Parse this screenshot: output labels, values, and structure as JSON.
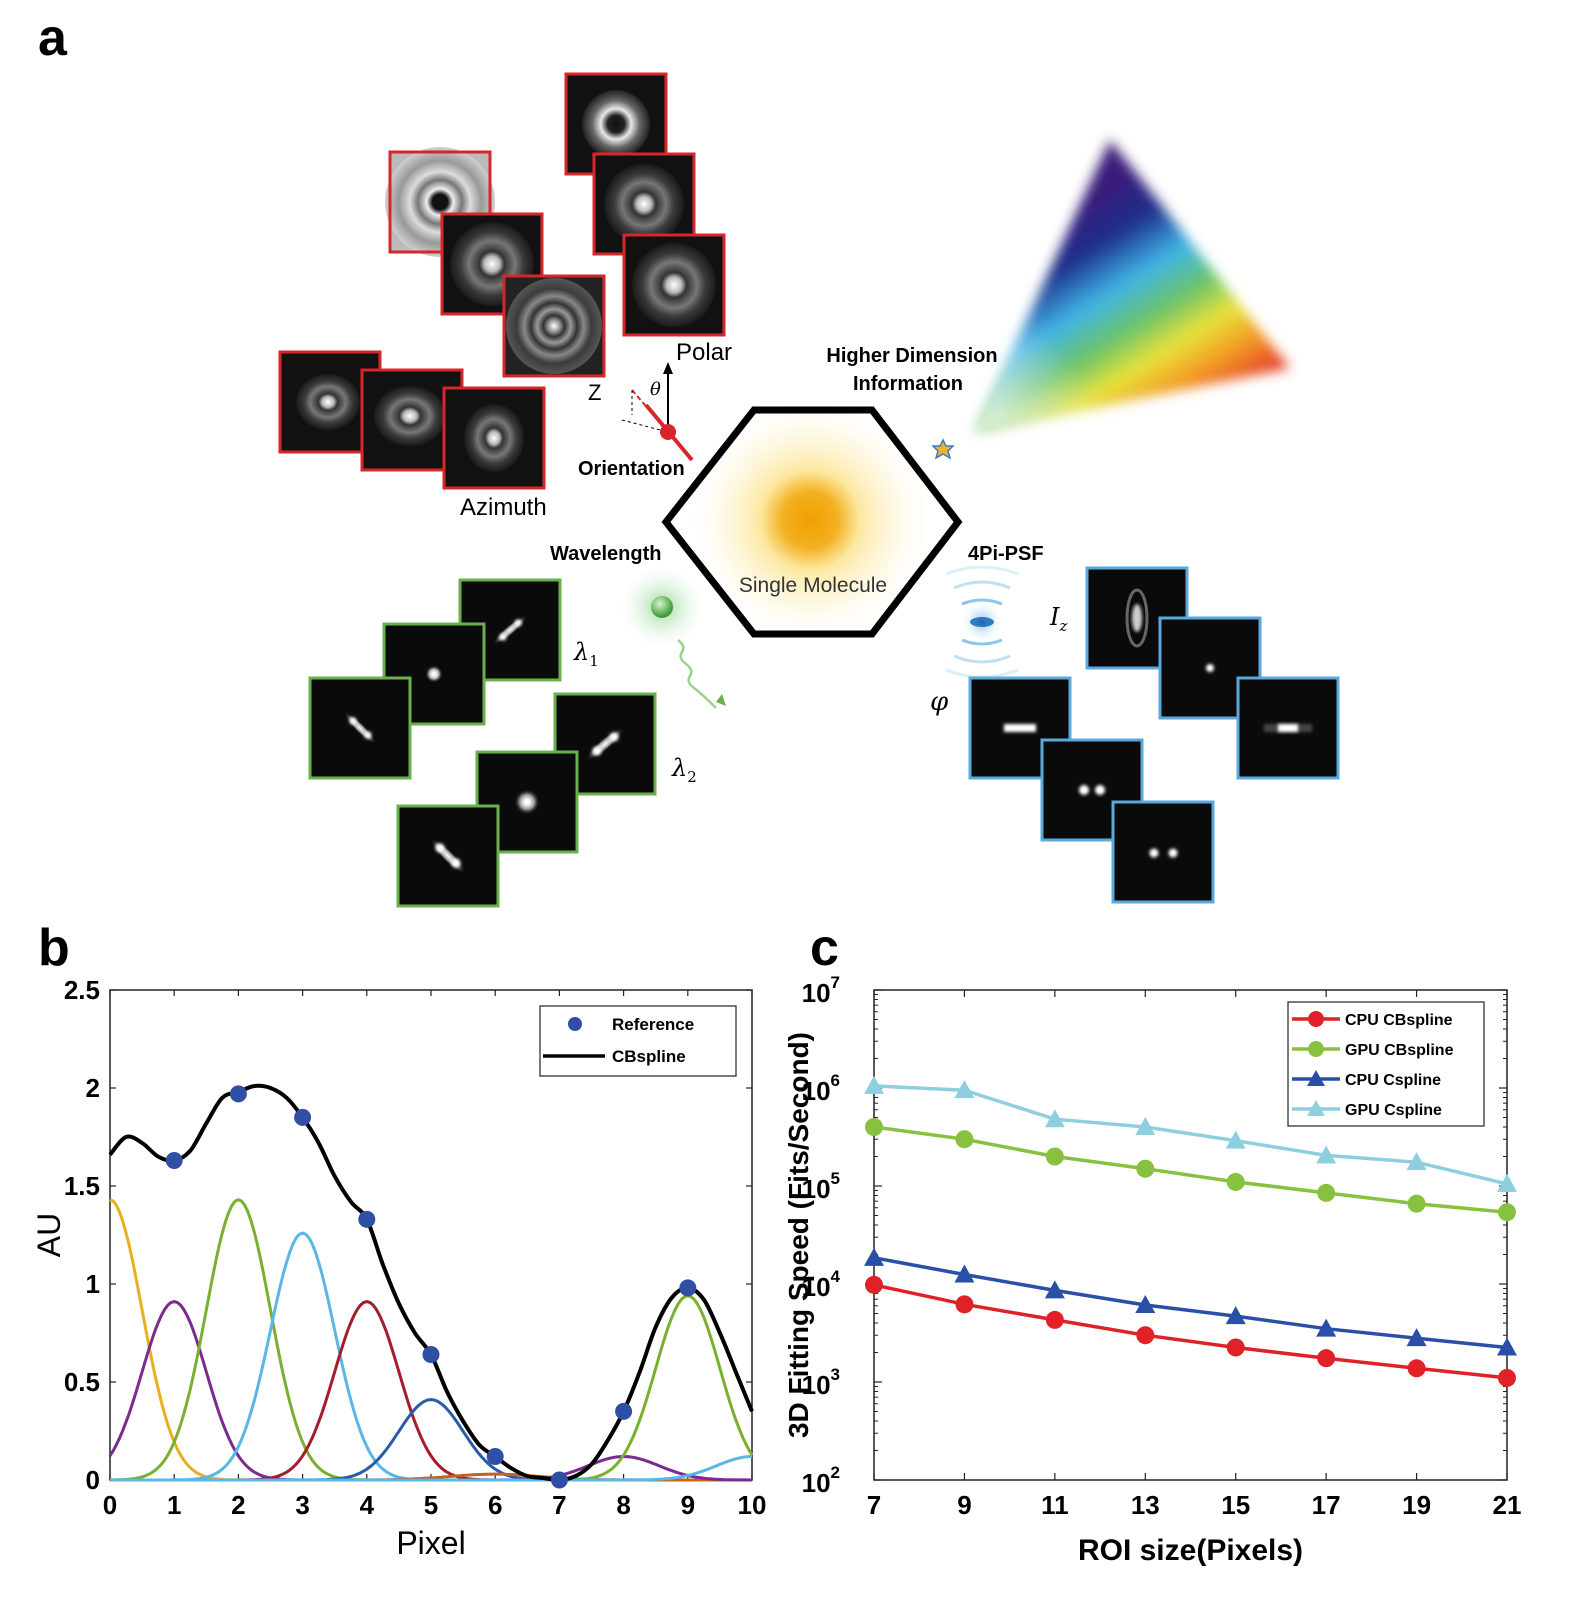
{
  "panel_labels": {
    "a": "a",
    "b": "b",
    "c": "c"
  },
  "panel_a": {
    "labels": {
      "polar": "Polar",
      "azimuth": "Azimuth",
      "z": "Z",
      "theta": "θ",
      "orientation": "Orientation",
      "higher_dimension_line1": "Higher Dimension",
      "higher_dimension_line2": "Information",
      "wavelength": "Wavelength",
      "single_molecule": "Single Molecule",
      "four_pi_psf": "4Pi-PSF",
      "lambda1": "λ",
      "lambda1_sub": "1",
      "lambda2": "λ",
      "lambda2_sub": "2",
      "iz": "I",
      "iz_sub": "z",
      "phi": "φ"
    },
    "frame_colors": {
      "orientation": "#d7262b",
      "wavelength": "#6ab04c",
      "four_pi": "#5aa9dc"
    }
  },
  "chart_data": [
    {
      "type": "line",
      "panel": "b",
      "xlabel": "Pixel",
      "ylabel": "AU",
      "xlim": [
        0,
        10
      ],
      "ylim": [
        0,
        2.5
      ],
      "xticks": [
        "0",
        "1",
        "2",
        "3",
        "4",
        "5",
        "6",
        "7",
        "8",
        "9",
        "10"
      ],
      "yticks": [
        "0",
        "0.5",
        "1",
        "1.5",
        "2",
        "2.5"
      ],
      "legend_position": "top-right",
      "legend": [
        "Reference",
        "CBspline"
      ],
      "reference_points": {
        "name": "Reference",
        "color": "#2e4fa3",
        "x": [
          1,
          2,
          3,
          4,
          5,
          6,
          7,
          8,
          9
        ],
        "y": [
          1.63,
          1.97,
          1.85,
          1.33,
          0.64,
          0.12,
          0.0,
          0.35,
          0.98
        ]
      },
      "fit_curve": {
        "name": "CBspline",
        "color": "#000000",
        "x": [
          0,
          0.25,
          0.5,
          0.75,
          1,
          1.25,
          1.5,
          1.75,
          2,
          2.25,
          2.5,
          2.75,
          3,
          3.25,
          3.5,
          3.75,
          4,
          4.25,
          4.5,
          4.75,
          5,
          5.25,
          5.5,
          5.75,
          6,
          6.25,
          6.5,
          6.75,
          7,
          7.25,
          7.5,
          7.75,
          8,
          8.25,
          8.5,
          8.75,
          9,
          9.25,
          9.5,
          9.75,
          10
        ],
        "y": [
          1.66,
          1.75,
          1.72,
          1.65,
          1.63,
          1.68,
          1.82,
          1.95,
          1.98,
          2.01,
          2.0,
          1.95,
          1.85,
          1.72,
          1.55,
          1.42,
          1.33,
          1.1,
          0.9,
          0.75,
          0.64,
          0.45,
          0.3,
          0.18,
          0.12,
          0.06,
          0.02,
          0.01,
          0.0,
          0.02,
          0.08,
          0.2,
          0.35,
          0.55,
          0.78,
          0.93,
          0.98,
          0.92,
          0.75,
          0.55,
          0.35
        ]
      },
      "basis_functions": [
        {
          "color": "#e8b020",
          "center": 0,
          "amp": 1.43,
          "sigma": 0.5
        },
        {
          "color": "#7b2b8e",
          "center": 1,
          "amp": 0.91,
          "sigma": 0.5
        },
        {
          "color": "#79b030",
          "center": 2,
          "amp": 1.43,
          "sigma": 0.5
        },
        {
          "color": "#5ab6e6",
          "center": 3,
          "amp": 1.26,
          "sigma": 0.5
        },
        {
          "color": "#a31d2c",
          "center": 4,
          "amp": 0.91,
          "sigma": 0.5
        },
        {
          "color": "#2a5ba8",
          "center": 5,
          "amp": 0.41,
          "sigma": 0.5
        },
        {
          "color": "#c86020",
          "center": 6,
          "amp": 0.03,
          "sigma": 0.7
        },
        {
          "color": "#7b2b8e",
          "center": 8,
          "amp": 0.12,
          "sigma": 0.55
        },
        {
          "color": "#79b030",
          "center": 9,
          "amp": 0.94,
          "sigma": 0.5
        },
        {
          "color": "#5ab6e6",
          "center": 10,
          "amp": 0.12,
          "sigma": 0.55
        }
      ]
    },
    {
      "type": "line",
      "panel": "c",
      "xlabel": "ROI size(Pixels)",
      "ylabel": "3D Fitting Speed (Fits/Second)",
      "y_scale": "log",
      "xlim": [
        7,
        21
      ],
      "ylim": [
        100,
        10000000
      ],
      "xticks": [
        "7",
        "9",
        "11",
        "13",
        "15",
        "17",
        "19",
        "21"
      ],
      "yticks": [
        "10",
        "10",
        "10",
        "10",
        "10",
        "10"
      ],
      "ytick_exponents": [
        "2",
        "3",
        "4",
        "5",
        "6",
        "7"
      ],
      "legend_position": "top-right",
      "x": [
        7,
        9,
        11,
        13,
        15,
        17,
        19,
        21
      ],
      "series": [
        {
          "name": "CPU CBspline",
          "color": "#e02228",
          "marker": "circle",
          "values": [
            9800,
            6200,
            4300,
            3000,
            2250,
            1750,
            1380,
            1100
          ]
        },
        {
          "name": "GPU CBspline",
          "color": "#88c040",
          "marker": "circle",
          "values": [
            400000,
            300000,
            200000,
            150000,
            110000,
            85000,
            66000,
            54000
          ]
        },
        {
          "name": "CPU Cspline",
          "color": "#2a4fa8",
          "marker": "triangle",
          "values": [
            18500,
            12500,
            8600,
            6100,
            4700,
            3500,
            2800,
            2250
          ]
        },
        {
          "name": "GPU Cspline",
          "color": "#8ecfdf",
          "marker": "triangle",
          "values": [
            1050000,
            950000,
            480000,
            400000,
            290000,
            205000,
            175000,
            105000
          ]
        }
      ]
    }
  ]
}
